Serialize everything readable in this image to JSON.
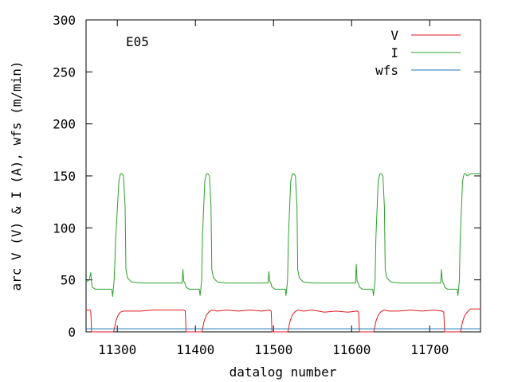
{
  "chart_data": {
    "type": "line",
    "xlabel": "datalog number",
    "ylabel": "arc V (V) & I (A), wfs (m/min)",
    "annotation": "E05",
    "xlim": [
      11260,
      11765
    ],
    "ylim": [
      0,
      300
    ],
    "xticks": [
      11300,
      11400,
      11500,
      11600,
      11700
    ],
    "yticks": [
      0,
      50,
      100,
      150,
      200,
      250,
      300
    ],
    "grid": false,
    "legend_position": "top-right",
    "series": [
      {
        "name": "V",
        "color": "#e41a1c",
        "x": [
          11260,
          11265,
          11266,
          11267,
          11280,
          11295,
          11296,
          11298,
          11301,
          11304,
          11308,
          11315,
          11330,
          11345,
          11360,
          11375,
          11385,
          11387,
          11388,
          11400,
          11408,
          11409,
          11411,
          11414,
          11417,
          11421,
          11428,
          11440,
          11455,
          11470,
          11485,
          11495,
          11497,
          11498,
          11510,
          11518,
          11519,
          11521,
          11524,
          11527,
          11531,
          11538,
          11550,
          11565,
          11580,
          11595,
          11607,
          11609,
          11610,
          11625,
          11628,
          11629,
          11631,
          11634,
          11637,
          11641,
          11648,
          11660,
          11675,
          11690,
          11705,
          11716,
          11718,
          11719,
          11735,
          11739,
          11740,
          11742,
          11745,
          11748,
          11752,
          11765
        ],
        "y": [
          21,
          21,
          20,
          0,
          0,
          0,
          2,
          10,
          16,
          19,
          20,
          20,
          20,
          21,
          21,
          21,
          21,
          20,
          0,
          0,
          0,
          2,
          10,
          16,
          19,
          21,
          20,
          21,
          20,
          21,
          20,
          21,
          20,
          0,
          0,
          0,
          2,
          10,
          16,
          19,
          21,
          20,
          21,
          19,
          20,
          19,
          20,
          19,
          0,
          0,
          0,
          2,
          10,
          16,
          19,
          21,
          20,
          20,
          21,
          20,
          21,
          20,
          19,
          0,
          0,
          0,
          2,
          10,
          16,
          19,
          22,
          22
        ]
      },
      {
        "name": "I",
        "color": "#2ca02c",
        "x": [
          11260,
          11264,
          11266,
          11267,
          11268,
          11272,
          11285,
          11293,
          11294,
          11295,
          11296,
          11298,
          11302,
          11304,
          11306,
          11308,
          11310,
          11311,
          11313,
          11318,
          11330,
          11345,
          11360,
          11375,
          11383,
          11384,
          11385,
          11387,
          11388,
          11392,
          11405,
          11406,
          11407,
          11408,
          11409,
          11412,
          11414,
          11416,
          11418,
          11420,
          11421,
          11423,
          11428,
          11440,
          11455,
          11470,
          11485,
          11493,
          11494,
          11495,
          11497,
          11498,
          11502,
          11515,
          11516,
          11517,
          11518,
          11519,
          11522,
          11524,
          11526,
          11528,
          11530,
          11531,
          11533,
          11538,
          11550,
          11565,
          11580,
          11595,
          11605,
          11606,
          11607,
          11609,
          11610,
          11614,
          11627,
          11628,
          11629,
          11630,
          11631,
          11634,
          11636,
          11638,
          11640,
          11642,
          11643,
          11645,
          11650,
          11660,
          11675,
          11690,
          11705,
          11714,
          11715,
          11716,
          11718,
          11719,
          11723,
          11735,
          11736,
          11737,
          11738,
          11739,
          11742,
          11744,
          11746,
          11748,
          11752,
          11765
        ],
        "y": [
          48,
          50,
          57,
          47,
          43,
          41,
          41,
          41,
          34,
          42,
          50,
          90,
          145,
          152,
          152,
          150,
          120,
          60,
          52,
          48,
          47,
          47,
          47,
          47,
          47,
          60,
          49,
          46,
          43,
          41,
          41,
          35,
          42,
          50,
          90,
          145,
          152,
          152,
          150,
          120,
          60,
          52,
          48,
          47,
          47,
          47,
          47,
          47,
          58,
          49,
          46,
          43,
          41,
          41,
          35,
          42,
          50,
          90,
          145,
          152,
          152,
          150,
          120,
          60,
          52,
          48,
          47,
          47,
          47,
          47,
          47,
          65,
          49,
          46,
          43,
          41,
          41,
          35,
          42,
          50,
          90,
          145,
          152,
          152,
          150,
          120,
          60,
          52,
          48,
          47,
          47,
          47,
          47,
          47,
          60,
          49,
          46,
          43,
          41,
          41,
          35,
          42,
          50,
          90,
          145,
          152,
          152,
          150,
          152,
          152
        ]
      },
      {
        "name": "wfs",
        "color": "#1f77b4",
        "x": [
          11260,
          11765
        ],
        "y": [
          3,
          3
        ]
      }
    ]
  }
}
